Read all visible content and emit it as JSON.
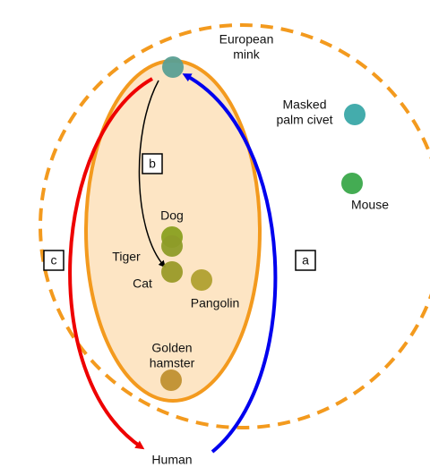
{
  "nodes": [
    {
      "label": [
        "European",
        "mink"
      ]
    },
    {
      "label": [
        "Masked",
        "palm civet"
      ]
    },
    {
      "label": [
        "Mouse"
      ]
    },
    {
      "label": [
        "Dog"
      ]
    },
    {
      "label": [
        "Tiger"
      ]
    },
    {
      "label": [
        "Cat"
      ]
    },
    {
      "label": [
        "Pangolin"
      ]
    },
    {
      "label": [
        "Golden",
        "hamster"
      ]
    },
    {
      "label": [
        "Human"
      ]
    }
  ],
  "routes": [
    {
      "label": "a"
    },
    {
      "label": "b"
    },
    {
      "label": "c"
    }
  ]
}
